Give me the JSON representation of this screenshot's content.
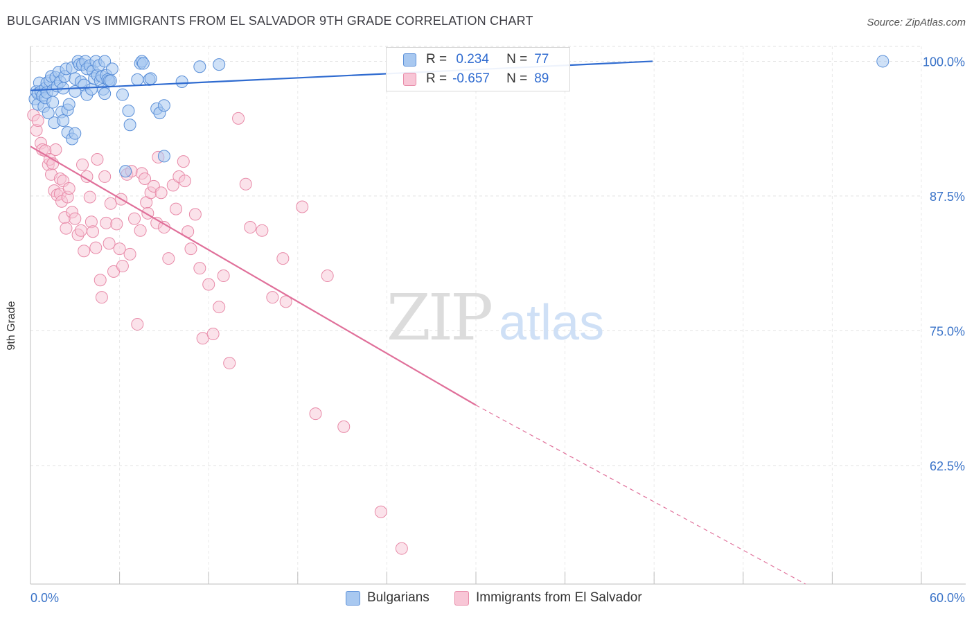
{
  "title": "BULGARIAN VS IMMIGRANTS FROM EL SALVADOR 9TH GRADE CORRELATION CHART",
  "source": "Source: ZipAtlas.com",
  "watermark": {
    "zip": "ZIP",
    "atlas": "atlas"
  },
  "colors": {
    "blue_fill": "#a8c8f0",
    "blue_stroke": "#5a8fd8",
    "blue_line": "#2f6bd0",
    "pink_fill": "#f8c6d6",
    "pink_stroke": "#e88aa8",
    "pink_line": "#e0709a",
    "axis_label": "#3a73c8"
  },
  "legend": {
    "rows": [
      {
        "r_label": "R =",
        "r_value": " 0.234",
        "n_label": "N =",
        "n_value": "77"
      },
      {
        "r_label": "R =",
        "r_value": "-0.657",
        "n_label": "N =",
        "n_value": "89"
      }
    ]
  },
  "bottom_legend": {
    "series1": "Bulgarians",
    "series2": "Immigrants from El Salvador"
  },
  "chart_data": {
    "type": "scatter",
    "title": "BULGARIAN VS IMMIGRANTS FROM EL SALVADOR 9TH GRADE CORRELATION CHART",
    "xlabel": "",
    "ylabel": "9th Grade",
    "xlim": [
      0,
      60
    ],
    "ylim": [
      51.5,
      101.7
    ],
    "x_tick_labels": [
      "0.0%",
      "60.0%"
    ],
    "y_ticks": [
      62.5,
      75.0,
      87.5,
      100.0
    ],
    "y_tick_labels": [
      "62.5%",
      "75.0%",
      "87.5%",
      "100.0%"
    ],
    "grid": true,
    "series": [
      {
        "name": "Bulgarians",
        "r": 0.234,
        "n": 77,
        "trend": {
          "x0": 0,
          "y0": 97.3,
          "x1": 41.9,
          "y1": 100.0,
          "x1_dash": 41.9
        },
        "points": [
          [
            0.3,
            96.5
          ],
          [
            0.4,
            97.2
          ],
          [
            0.5,
            97.0
          ],
          [
            0.5,
            96.0
          ],
          [
            0.6,
            98.0
          ],
          [
            0.7,
            97.2
          ],
          [
            0.8,
            96.8
          ],
          [
            0.9,
            95.8
          ],
          [
            1.0,
            97.5
          ],
          [
            1.0,
            96.6
          ],
          [
            1.1,
            98.0
          ],
          [
            1.1,
            97.1
          ],
          [
            1.2,
            95.2
          ],
          [
            1.3,
            98.2
          ],
          [
            1.4,
            98.6
          ],
          [
            1.5,
            97.3
          ],
          [
            1.5,
            96.2
          ],
          [
            1.6,
            94.3
          ],
          [
            1.7,
            98.5
          ],
          [
            1.8,
            97.7
          ],
          [
            1.9,
            99.0
          ],
          [
            2.0,
            98.1
          ],
          [
            2.1,
            95.3
          ],
          [
            2.2,
            97.5
          ],
          [
            2.2,
            94.5
          ],
          [
            2.3,
            98.6
          ],
          [
            2.4,
            99.3
          ],
          [
            2.5,
            93.4
          ],
          [
            2.5,
            95.5
          ],
          [
            2.6,
            96.0
          ],
          [
            2.8,
            99.4
          ],
          [
            2.8,
            92.8
          ],
          [
            3.0,
            98.4
          ],
          [
            3.0,
            93.3
          ],
          [
            3.0,
            97.2
          ],
          [
            3.2,
            100.0
          ],
          [
            3.3,
            99.7
          ],
          [
            3.4,
            98.1
          ],
          [
            3.5,
            99.7
          ],
          [
            3.6,
            97.8
          ],
          [
            3.7,
            100.0
          ],
          [
            3.8,
            99.3
          ],
          [
            3.8,
            96.9
          ],
          [
            4.0,
            99.6
          ],
          [
            4.1,
            97.4
          ],
          [
            4.2,
            99.1
          ],
          [
            4.3,
            98.4
          ],
          [
            4.4,
            100.0
          ],
          [
            4.5,
            98.7
          ],
          [
            4.6,
            99.6
          ],
          [
            4.7,
            98.2
          ],
          [
            4.8,
            98.6
          ],
          [
            4.9,
            97.4
          ],
          [
            5.0,
            97.0
          ],
          [
            5.0,
            100.0
          ],
          [
            5.1,
            98.7
          ],
          [
            5.2,
            98.3
          ],
          [
            5.3,
            98.2
          ],
          [
            5.4,
            98.2
          ],
          [
            5.5,
            99.3
          ],
          [
            6.2,
            96.9
          ],
          [
            6.4,
            89.8
          ],
          [
            6.6,
            95.4
          ],
          [
            6.7,
            94.1
          ],
          [
            7.2,
            98.3
          ],
          [
            7.4,
            99.8
          ],
          [
            7.5,
            100.0
          ],
          [
            7.6,
            99.8
          ],
          [
            8.0,
            98.3
          ],
          [
            8.5,
            95.6
          ],
          [
            8.7,
            95.2
          ],
          [
            9.0,
            95.9
          ],
          [
            9.0,
            91.2
          ],
          [
            8.1,
            98.4
          ],
          [
            10.2,
            98.1
          ],
          [
            11.4,
            99.5
          ],
          [
            12.7,
            99.7
          ],
          [
            57.4,
            100.0
          ]
        ]
      },
      {
        "name": "Immigrants from El Salvador",
        "r": -0.657,
        "n": 89,
        "trend": {
          "x0": 0,
          "y0": 92.1,
          "x1": 30.0,
          "y1": 68.1,
          "x1_dash": 52.2,
          "y1_dash": 51.5
        },
        "points": [
          [
            0.2,
            95.0
          ],
          [
            0.4,
            93.6
          ],
          [
            0.5,
            94.5
          ],
          [
            0.7,
            92.4
          ],
          [
            0.8,
            91.8
          ],
          [
            1.0,
            91.7
          ],
          [
            1.2,
            90.4
          ],
          [
            1.3,
            90.9
          ],
          [
            1.4,
            89.5
          ],
          [
            1.5,
            90.5
          ],
          [
            1.6,
            88.0
          ],
          [
            1.7,
            91.8
          ],
          [
            1.8,
            87.6
          ],
          [
            2.0,
            89.1
          ],
          [
            2.0,
            87.7
          ],
          [
            2.1,
            87.0
          ],
          [
            2.2,
            88.9
          ],
          [
            2.3,
            85.5
          ],
          [
            2.4,
            84.5
          ],
          [
            2.5,
            87.4
          ],
          [
            2.6,
            88.2
          ],
          [
            2.8,
            86.0
          ],
          [
            3.0,
            85.4
          ],
          [
            3.2,
            83.9
          ],
          [
            3.4,
            84.3
          ],
          [
            3.5,
            90.4
          ],
          [
            3.6,
            82.4
          ],
          [
            3.8,
            89.3
          ],
          [
            4.0,
            87.4
          ],
          [
            4.1,
            85.1
          ],
          [
            4.2,
            84.2
          ],
          [
            4.4,
            82.7
          ],
          [
            4.5,
            90.9
          ],
          [
            4.7,
            79.7
          ],
          [
            4.8,
            78.1
          ],
          [
            5.0,
            89.3
          ],
          [
            5.1,
            85.0
          ],
          [
            5.3,
            83.1
          ],
          [
            5.4,
            86.8
          ],
          [
            5.6,
            80.5
          ],
          [
            5.8,
            84.9
          ],
          [
            6.0,
            82.6
          ],
          [
            6.1,
            87.2
          ],
          [
            6.2,
            81.0
          ],
          [
            6.5,
            89.5
          ],
          [
            6.7,
            82.1
          ],
          [
            6.8,
            89.8
          ],
          [
            7.0,
            85.4
          ],
          [
            7.2,
            75.6
          ],
          [
            7.4,
            84.3
          ],
          [
            7.5,
            89.6
          ],
          [
            7.7,
            89.1
          ],
          [
            7.8,
            86.9
          ],
          [
            7.9,
            85.9
          ],
          [
            8.1,
            87.8
          ],
          [
            8.3,
            88.4
          ],
          [
            8.5,
            85.0
          ],
          [
            8.6,
            91.1
          ],
          [
            8.8,
            87.8
          ],
          [
            9.0,
            84.6
          ],
          [
            9.3,
            81.7
          ],
          [
            9.6,
            88.5
          ],
          [
            9.8,
            86.3
          ],
          [
            10.0,
            89.3
          ],
          [
            10.3,
            90.7
          ],
          [
            10.4,
            88.9
          ],
          [
            10.6,
            84.2
          ],
          [
            10.8,
            82.6
          ],
          [
            11.1,
            85.8
          ],
          [
            11.4,
            80.8
          ],
          [
            11.6,
            74.3
          ],
          [
            12.0,
            79.3
          ],
          [
            12.3,
            74.7
          ],
          [
            12.7,
            77.2
          ],
          [
            13.0,
            80.1
          ],
          [
            13.4,
            72.0
          ],
          [
            14.0,
            94.7
          ],
          [
            14.5,
            88.6
          ],
          [
            14.8,
            84.6
          ],
          [
            15.6,
            84.3
          ],
          [
            16.3,
            78.1
          ],
          [
            17.0,
            81.7
          ],
          [
            17.2,
            77.7
          ],
          [
            18.3,
            86.5
          ],
          [
            19.2,
            67.3
          ],
          [
            20.0,
            80.1
          ],
          [
            21.1,
            66.1
          ],
          [
            23.6,
            58.2
          ],
          [
            25.0,
            54.8
          ]
        ]
      }
    ]
  }
}
